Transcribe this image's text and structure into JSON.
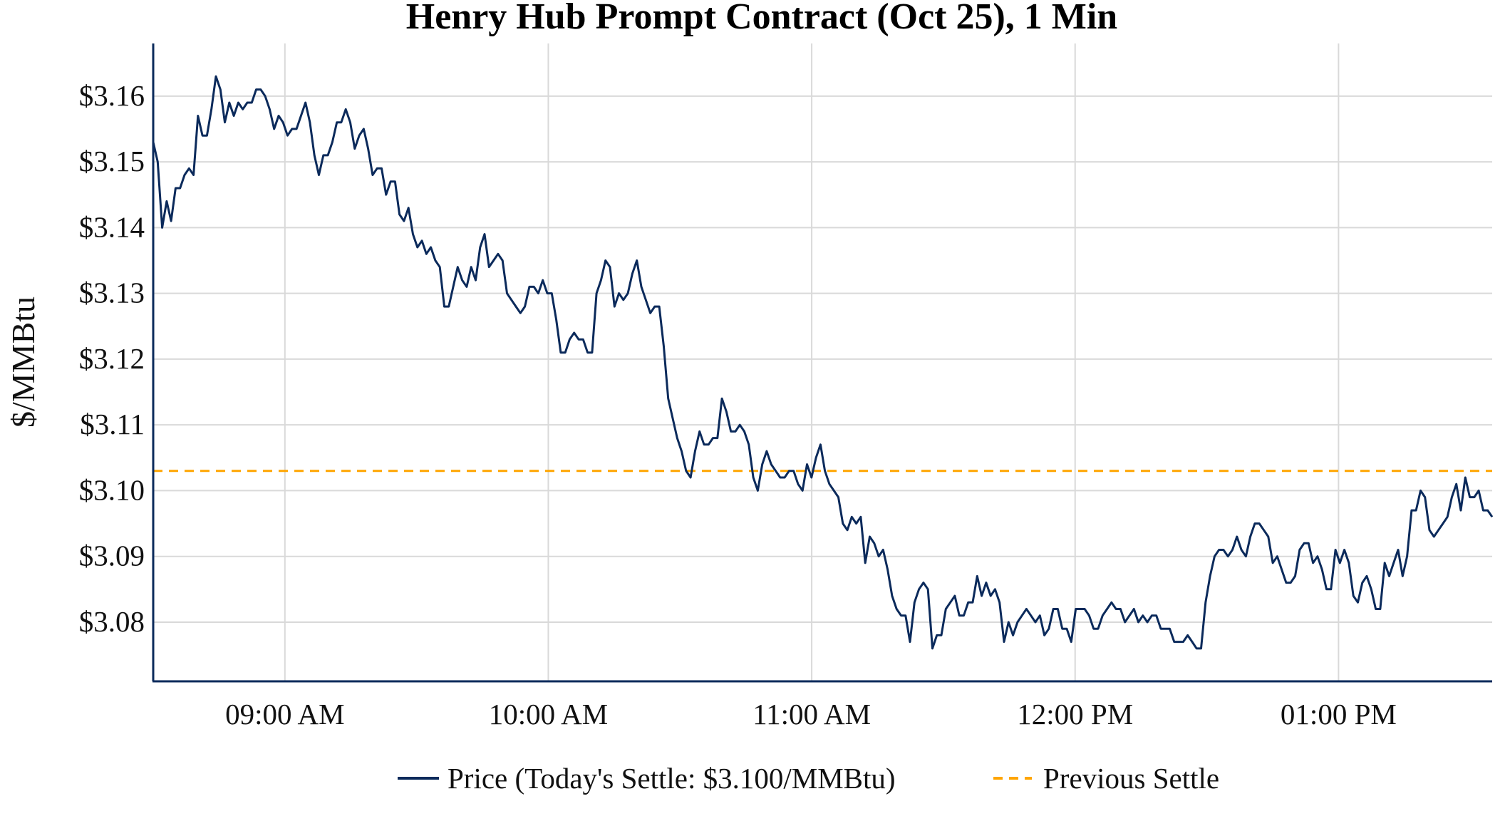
{
  "chart_data": {
    "type": "line",
    "title": "Henry Hub Prompt Contract (Oct 25), 1 Min",
    "xlabel": "",
    "ylabel": "$/MMBtu",
    "x_start": "08:30",
    "x_end": "13:35",
    "x_interval_minutes": 1,
    "xlim_minutes_from_start": [
      0,
      305
    ],
    "ylim": [
      3.071,
      3.168
    ],
    "grid": true,
    "legend_placement": "bottom-center",
    "x_ticks": [
      {
        "label": "09:00 AM",
        "minute": 30
      },
      {
        "label": "10:00 AM",
        "minute": 90
      },
      {
        "label": "11:00 AM",
        "minute": 150
      },
      {
        "label": "12:00 PM",
        "minute": 210
      },
      {
        "label": "01:00 PM",
        "minute": 270
      }
    ],
    "y_ticks": [
      {
        "label": "$3.08",
        "value": 3.08
      },
      {
        "label": "$3.09",
        "value": 3.09
      },
      {
        "label": "$3.10",
        "value": 3.1
      },
      {
        "label": "$3.11",
        "value": 3.11
      },
      {
        "label": "$3.12",
        "value": 3.12
      },
      {
        "label": "$3.13",
        "value": 3.13
      },
      {
        "label": "$3.14",
        "value": 3.14
      },
      {
        "label": "$3.15",
        "value": 3.15
      },
      {
        "label": "$3.16",
        "value": 3.16
      }
    ],
    "series": [
      {
        "name": "Price (Today's Settle: $3.100/MMBtu)",
        "color": "#0b2a5b",
        "style": "solid",
        "values": [
          3.153,
          3.15,
          3.14,
          3.144,
          3.141,
          3.146,
          3.146,
          3.148,
          3.149,
          3.148,
          3.157,
          3.154,
          3.154,
          3.158,
          3.163,
          3.161,
          3.156,
          3.159,
          3.157,
          3.159,
          3.158,
          3.159,
          3.159,
          3.161,
          3.161,
          3.16,
          3.158,
          3.155,
          3.157,
          3.156,
          3.154,
          3.155,
          3.155,
          3.157,
          3.159,
          3.156,
          3.151,
          3.148,
          3.151,
          3.151,
          3.153,
          3.156,
          3.156,
          3.158,
          3.156,
          3.152,
          3.154,
          3.155,
          3.152,
          3.148,
          3.149,
          3.149,
          3.145,
          3.147,
          3.147,
          3.142,
          3.141,
          3.143,
          3.139,
          3.137,
          3.138,
          3.136,
          3.137,
          3.135,
          3.134,
          3.128,
          3.128,
          3.131,
          3.134,
          3.132,
          3.131,
          3.134,
          3.132,
          3.137,
          3.139,
          3.134,
          3.135,
          3.136,
          3.135,
          3.13,
          3.129,
          3.128,
          3.127,
          3.128,
          3.131,
          3.131,
          3.13,
          3.132,
          3.13,
          3.13,
          3.126,
          3.121,
          3.121,
          3.123,
          3.124,
          3.123,
          3.123,
          3.121,
          3.121,
          3.13,
          3.132,
          3.135,
          3.134,
          3.128,
          3.13,
          3.129,
          3.13,
          3.133,
          3.135,
          3.131,
          3.129,
          3.127,
          3.128,
          3.128,
          3.122,
          3.114,
          3.111,
          3.108,
          3.106,
          3.103,
          3.102,
          3.106,
          3.109,
          3.107,
          3.107,
          3.108,
          3.108,
          3.114,
          3.112,
          3.109,
          3.109,
          3.11,
          3.109,
          3.107,
          3.102,
          3.1,
          3.104,
          3.106,
          3.104,
          3.103,
          3.102,
          3.102,
          3.103,
          3.103,
          3.101,
          3.1,
          3.104,
          3.102,
          3.105,
          3.107,
          3.103,
          3.101,
          3.1,
          3.099,
          3.095,
          3.094,
          3.096,
          3.095,
          3.096,
          3.089,
          3.093,
          3.092,
          3.09,
          3.091,
          3.088,
          3.084,
          3.082,
          3.081,
          3.081,
          3.077,
          3.083,
          3.085,
          3.086,
          3.085,
          3.076,
          3.078,
          3.078,
          3.082,
          3.083,
          3.084,
          3.081,
          3.081,
          3.083,
          3.083,
          3.087,
          3.084,
          3.086,
          3.084,
          3.085,
          3.083,
          3.077,
          3.08,
          3.078,
          3.08,
          3.081,
          3.082,
          3.081,
          3.08,
          3.081,
          3.078,
          3.079,
          3.082,
          3.082,
          3.079,
          3.079,
          3.077,
          3.082,
          3.082,
          3.082,
          3.081,
          3.079,
          3.079,
          3.081,
          3.082,
          3.083,
          3.082,
          3.082,
          3.08,
          3.081,
          3.082,
          3.08,
          3.081,
          3.08,
          3.081,
          3.081,
          3.079,
          3.079,
          3.079,
          3.077,
          3.077,
          3.077,
          3.078,
          3.077,
          3.076,
          3.076,
          3.083,
          3.087,
          3.09,
          3.091,
          3.091,
          3.09,
          3.091,
          3.093,
          3.091,
          3.09,
          3.093,
          3.095,
          3.095,
          3.094,
          3.093,
          3.089,
          3.09,
          3.088,
          3.086,
          3.086,
          3.087,
          3.091,
          3.092,
          3.092,
          3.089,
          3.09,
          3.088,
          3.085,
          3.085,
          3.091,
          3.089,
          3.091,
          3.089,
          3.084,
          3.083,
          3.086,
          3.087,
          3.085,
          3.082,
          3.082,
          3.089,
          3.087,
          3.089,
          3.091,
          3.087,
          3.09,
          3.097,
          3.097,
          3.1,
          3.099,
          3.094,
          3.093,
          3.094,
          3.095,
          3.096,
          3.099,
          3.101,
          3.097,
          3.102,
          3.099,
          3.099,
          3.1,
          3.097,
          3.097,
          3.096
        ]
      },
      {
        "name": "Previous Settle",
        "color": "#ffa500",
        "style": "dashed",
        "value": 3.103
      }
    ]
  }
}
